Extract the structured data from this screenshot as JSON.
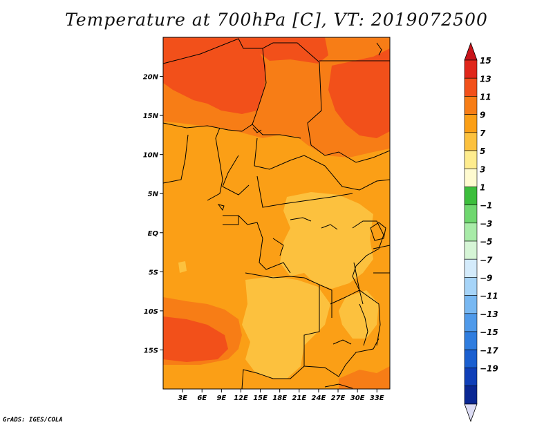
{
  "title": "Temperature at 700hPa [C], VT: 2019072500",
  "credit": "GrADS: IGES/COLA",
  "map": {
    "lat_labels": [
      "20N",
      "15N",
      "10N",
      "5N",
      "EQ",
      "5S",
      "10S",
      "15S"
    ],
    "lat_values": [
      20,
      15,
      10,
      5,
      0,
      -5,
      -10,
      -15
    ],
    "lon_labels": [
      "3E",
      "6E",
      "9E",
      "12E",
      "15E",
      "18E",
      "21E",
      "24E",
      "27E",
      "30E",
      "33E"
    ],
    "lon_values": [
      3,
      6,
      9,
      12,
      15,
      18,
      21,
      24,
      27,
      30,
      33
    ],
    "lat_range": [
      -20,
      25
    ],
    "lon_range": [
      0,
      35
    ]
  },
  "colorbar": {
    "labels": [
      "15",
      "13",
      "11",
      "9",
      "7",
      "5",
      "3",
      "1",
      "−1",
      "−3",
      "−5",
      "−7",
      "−9",
      "−11",
      "−13",
      "−15",
      "−17",
      "−19"
    ],
    "colors": {
      "top_arrow": "#c8141a",
      "bins": [
        "#e0261a",
        "#f2501a",
        "#f77d16",
        "#fb9f16",
        "#fcc13e",
        "#feec8e",
        "#fffbd0",
        "#3cbe3c",
        "#6fd76f",
        "#a8eba8",
        "#d6f5d6",
        "#d4ebfb",
        "#a6d4f8",
        "#78b8f2",
        "#4f9aea",
        "#2f7ddf",
        "#1a5fd0",
        "#0f3fb8",
        "#0a2793"
      ],
      "bottom_arrow": "#dcdcf4"
    }
  }
}
